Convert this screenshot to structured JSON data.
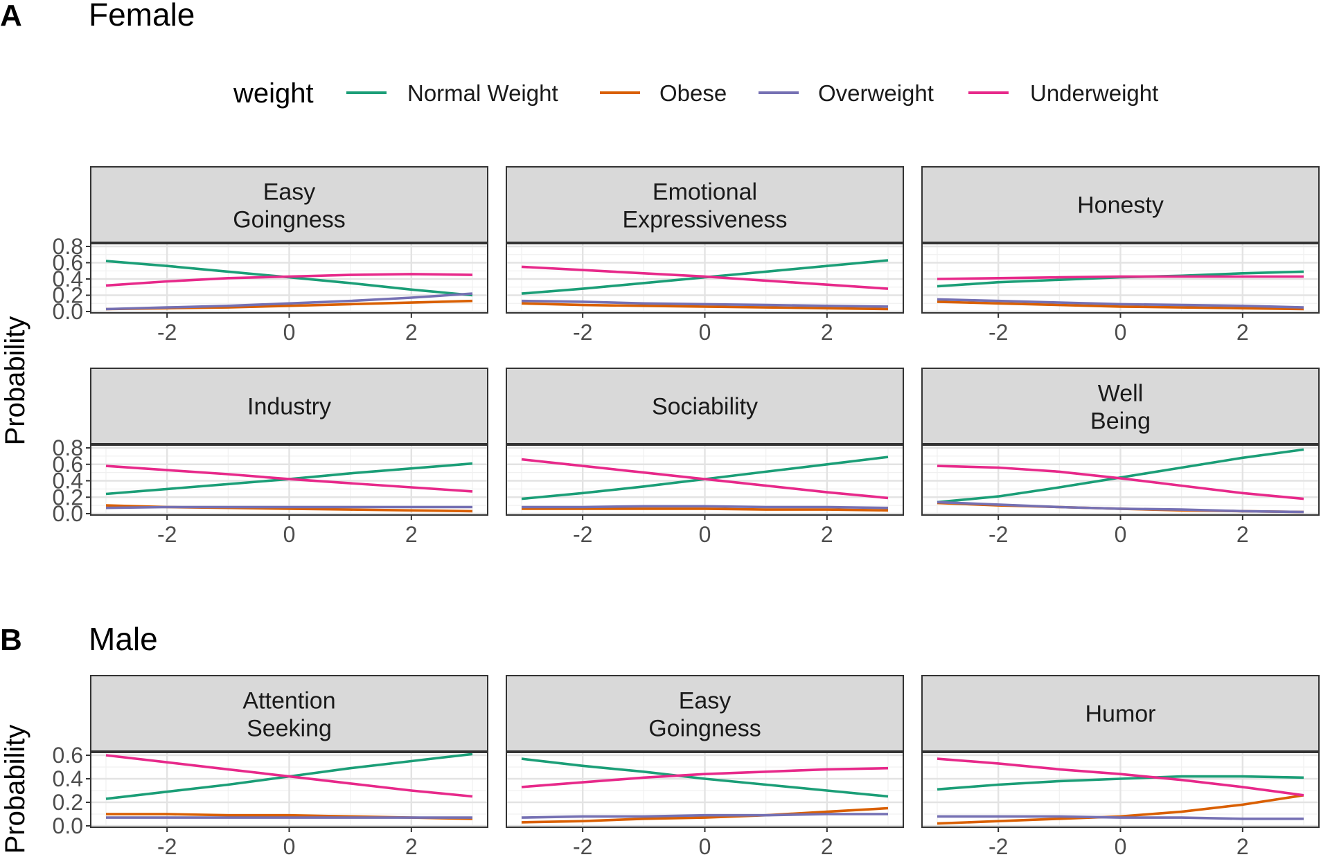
{
  "panel_a": {
    "tag": "A",
    "title": "Female"
  },
  "panel_b": {
    "tag": "B",
    "title": "Male"
  },
  "legend": {
    "title": "weight",
    "items": [
      {
        "label": "Normal Weight",
        "color": "#1b9e77"
      },
      {
        "label": "Obese",
        "color": "#d95f02"
      },
      {
        "label": "Overweight",
        "color": "#7570b3"
      },
      {
        "label": "Underweight",
        "color": "#e7298a"
      }
    ]
  },
  "chart_data": [
    {
      "type": "line",
      "group": "Female",
      "ylabel": "Probability",
      "xlim": [
        -3,
        3
      ],
      "ylim": [
        0,
        0.8
      ],
      "x_ticks": [
        -2,
        0,
        2
      ],
      "x_tick_labels": [
        "-2",
        "0",
        "2"
      ],
      "y_ticks": [
        0,
        0.2,
        0.4,
        0.6,
        0.8
      ],
      "y_tick_labels": [
        "0.0",
        "0.2",
        "0.4",
        "0.6",
        "0.8"
      ],
      "x": [
        -3,
        -2,
        -1,
        0,
        1,
        2,
        3
      ],
      "facets": [
        {
          "title": [
            "Easy",
            "Goingness"
          ],
          "series": [
            {
              "name": "Normal Weight",
              "values": [
                0.62,
                0.56,
                0.49,
                0.42,
                0.35,
                0.27,
                0.2
              ]
            },
            {
              "name": "Obese",
              "values": [
                0.03,
                0.04,
                0.05,
                0.07,
                0.09,
                0.11,
                0.13
              ]
            },
            {
              "name": "Overweight",
              "values": [
                0.03,
                0.05,
                0.07,
                0.1,
                0.13,
                0.17,
                0.22
              ]
            },
            {
              "name": "Underweight",
              "values": [
                0.32,
                0.37,
                0.41,
                0.43,
                0.45,
                0.46,
                0.45
              ]
            }
          ]
        },
        {
          "title": [
            "Emotional",
            "Expressiveness"
          ],
          "series": [
            {
              "name": "Normal Weight",
              "values": [
                0.22,
                0.28,
                0.35,
                0.42,
                0.49,
                0.56,
                0.63
              ]
            },
            {
              "name": "Obese",
              "values": [
                0.1,
                0.08,
                0.07,
                0.06,
                0.05,
                0.04,
                0.03
              ]
            },
            {
              "name": "Overweight",
              "values": [
                0.13,
                0.12,
                0.1,
                0.09,
                0.08,
                0.07,
                0.06
              ]
            },
            {
              "name": "Underweight",
              "values": [
                0.55,
                0.51,
                0.47,
                0.43,
                0.38,
                0.33,
                0.28
              ]
            }
          ]
        },
        {
          "title": [
            "Honesty"
          ],
          "series": [
            {
              "name": "Normal Weight",
              "values": [
                0.31,
                0.36,
                0.39,
                0.42,
                0.44,
                0.47,
                0.49
              ]
            },
            {
              "name": "Obese",
              "values": [
                0.12,
                0.1,
                0.08,
                0.06,
                0.05,
                0.04,
                0.03
              ]
            },
            {
              "name": "Overweight",
              "values": [
                0.15,
                0.13,
                0.11,
                0.09,
                0.08,
                0.07,
                0.05
              ]
            },
            {
              "name": "Underweight",
              "values": [
                0.4,
                0.41,
                0.42,
                0.43,
                0.43,
                0.43,
                0.43
              ]
            }
          ]
        },
        {
          "title": [
            "Industry"
          ],
          "series": [
            {
              "name": "Normal Weight",
              "values": [
                0.24,
                0.3,
                0.36,
                0.42,
                0.49,
                0.55,
                0.61
              ]
            },
            {
              "name": "Obese",
              "values": [
                0.1,
                0.08,
                0.07,
                0.06,
                0.05,
                0.04,
                0.03
              ]
            },
            {
              "name": "Overweight",
              "values": [
                0.07,
                0.08,
                0.08,
                0.08,
                0.08,
                0.08,
                0.08
              ]
            },
            {
              "name": "Underweight",
              "values": [
                0.58,
                0.53,
                0.48,
                0.42,
                0.37,
                0.32,
                0.27
              ]
            }
          ]
        },
        {
          "title": [
            "Sociability"
          ],
          "series": [
            {
              "name": "Normal Weight",
              "values": [
                0.18,
                0.25,
                0.33,
                0.42,
                0.51,
                0.6,
                0.69
              ]
            },
            {
              "name": "Obese",
              "values": [
                0.06,
                0.06,
                0.06,
                0.06,
                0.05,
                0.05,
                0.04
              ]
            },
            {
              "name": "Overweight",
              "values": [
                0.08,
                0.08,
                0.09,
                0.09,
                0.08,
                0.08,
                0.07
              ]
            },
            {
              "name": "Underweight",
              "values": [
                0.66,
                0.58,
                0.5,
                0.42,
                0.34,
                0.26,
                0.19
              ]
            }
          ]
        },
        {
          "title": [
            "Well",
            "Being"
          ],
          "series": [
            {
              "name": "Normal Weight",
              "values": [
                0.14,
                0.21,
                0.32,
                0.44,
                0.56,
                0.68,
                0.78
              ]
            },
            {
              "name": "Obese",
              "values": [
                0.13,
                0.1,
                0.08,
                0.06,
                0.04,
                0.03,
                0.02
              ]
            },
            {
              "name": "Overweight",
              "values": [
                0.14,
                0.11,
                0.08,
                0.06,
                0.05,
                0.03,
                0.02
              ]
            },
            {
              "name": "Underweight",
              "values": [
                0.58,
                0.56,
                0.51,
                0.43,
                0.34,
                0.25,
                0.18
              ]
            }
          ]
        }
      ]
    },
    {
      "type": "line",
      "group": "Male",
      "ylabel": "Probability",
      "xlim": [
        -3,
        3
      ],
      "ylim": [
        0,
        0.6
      ],
      "x_ticks": [
        -2,
        0,
        2
      ],
      "x_tick_labels": [
        "-2",
        "0",
        "2"
      ],
      "y_ticks": [
        0,
        0.2,
        0.4,
        0.6
      ],
      "y_tick_labels": [
        "0.0",
        "0.2",
        "0.4",
        "0.6"
      ],
      "x": [
        -3,
        -2,
        -1,
        0,
        1,
        2,
        3
      ],
      "facets": [
        {
          "title": [
            "Attention",
            "Seeking"
          ],
          "series": [
            {
              "name": "Normal Weight",
              "values": [
                0.23,
                0.29,
                0.35,
                0.42,
                0.49,
                0.55,
                0.61
              ]
            },
            {
              "name": "Obese",
              "values": [
                0.1,
                0.1,
                0.09,
                0.09,
                0.08,
                0.07,
                0.06
              ]
            },
            {
              "name": "Overweight",
              "values": [
                0.07,
                0.07,
                0.07,
                0.07,
                0.07,
                0.07,
                0.07
              ]
            },
            {
              "name": "Underweight",
              "values": [
                0.6,
                0.54,
                0.48,
                0.42,
                0.36,
                0.3,
                0.25
              ]
            }
          ]
        },
        {
          "title": [
            "Easy",
            "Goingness"
          ],
          "series": [
            {
              "name": "Normal Weight",
              "values": [
                0.57,
                0.51,
                0.46,
                0.4,
                0.35,
                0.3,
                0.25
              ]
            },
            {
              "name": "Obese",
              "values": [
                0.03,
                0.04,
                0.06,
                0.07,
                0.09,
                0.12,
                0.15
              ]
            },
            {
              "name": "Overweight",
              "values": [
                0.07,
                0.08,
                0.08,
                0.09,
                0.09,
                0.1,
                0.1
              ]
            },
            {
              "name": "Underweight",
              "values": [
                0.33,
                0.37,
                0.41,
                0.44,
                0.46,
                0.48,
                0.49
              ]
            }
          ]
        },
        {
          "title": [
            "Humor"
          ],
          "series": [
            {
              "name": "Normal Weight",
              "values": [
                0.31,
                0.35,
                0.38,
                0.4,
                0.42,
                0.42,
                0.41
              ]
            },
            {
              "name": "Obese",
              "values": [
                0.02,
                0.04,
                0.06,
                0.08,
                0.12,
                0.18,
                0.26
              ]
            },
            {
              "name": "Overweight",
              "values": [
                0.08,
                0.08,
                0.08,
                0.07,
                0.07,
                0.06,
                0.06
              ]
            },
            {
              "name": "Underweight",
              "values": [
                0.57,
                0.53,
                0.48,
                0.44,
                0.39,
                0.33,
                0.26
              ]
            }
          ]
        }
      ]
    }
  ]
}
